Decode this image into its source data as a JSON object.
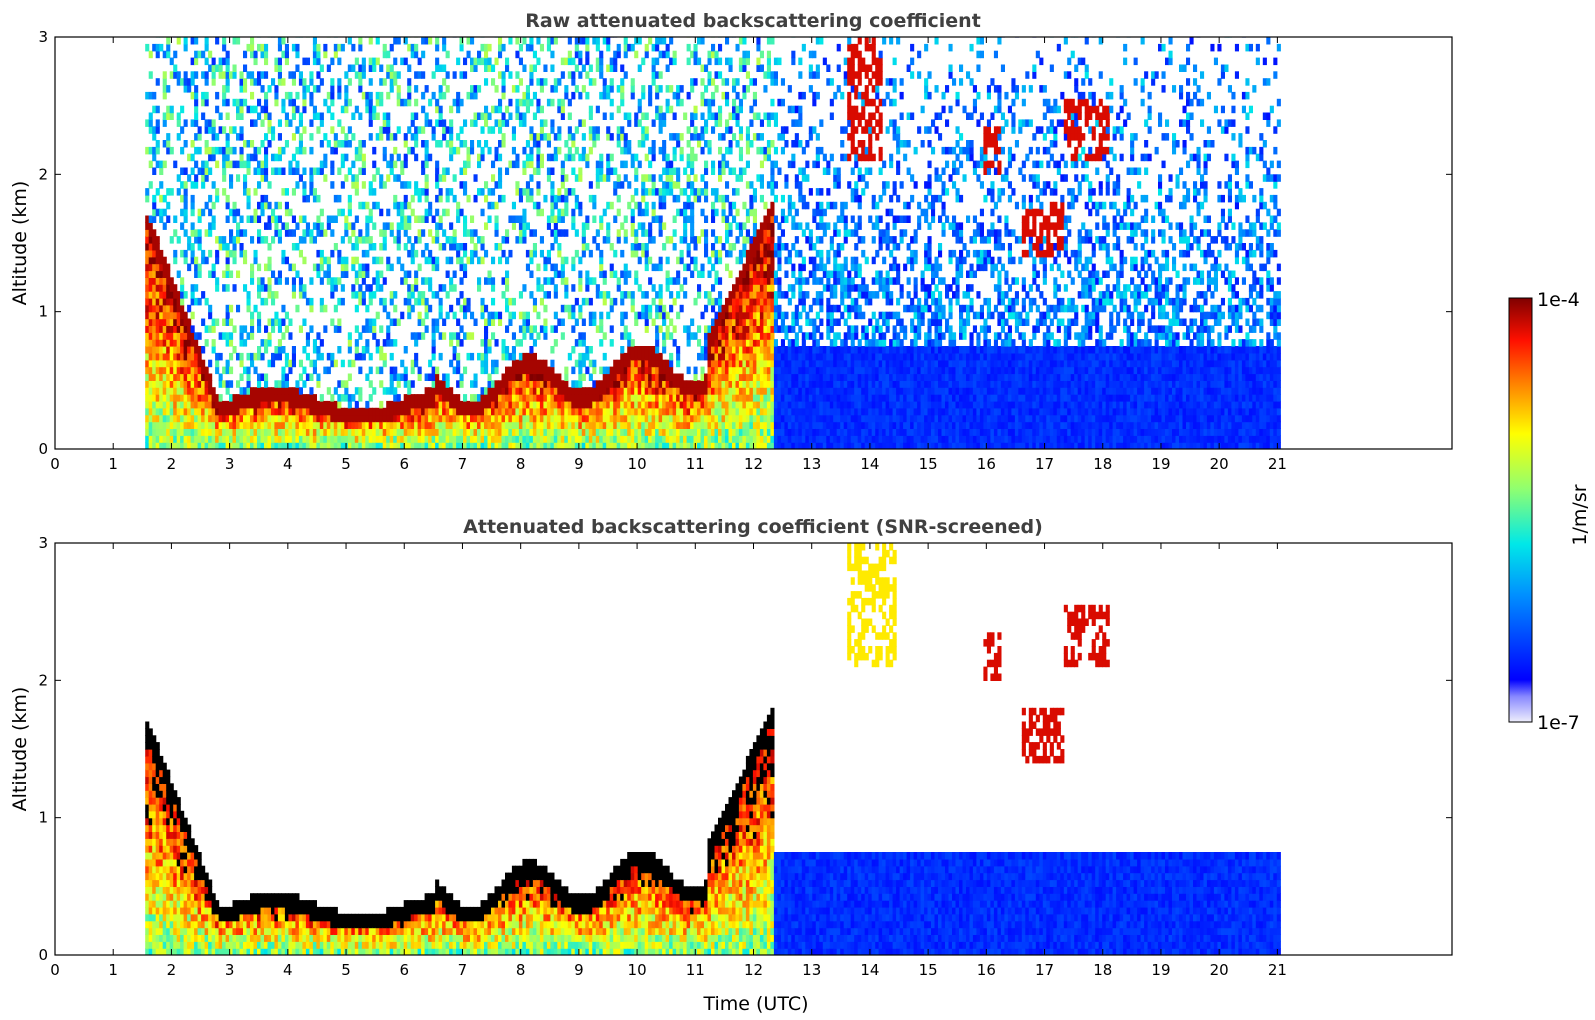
{
  "chart_data": [
    {
      "type": "heatmap",
      "title": "Raw attenuated backscattering coefficient",
      "xlabel": "",
      "ylabel": "Altitude (km)",
      "xlim": [
        0,
        24
      ],
      "ylim": [
        0,
        3
      ],
      "xticks": [
        "0",
        "1",
        "2",
        "3",
        "4",
        "5",
        "6",
        "7",
        "8",
        "9",
        "10",
        "11",
        "12",
        "13",
        "14",
        "15",
        "16",
        "17",
        "18",
        "19",
        "20",
        "21"
      ],
      "yticks": [
        "0",
        "1",
        "2",
        "3"
      ],
      "data_extent_x": [
        1.55,
        21.0
      ],
      "features": [
        {
          "name": "boundary layer",
          "x": [
            1.55,
            12.3
          ],
          "alt_km": [
            0.0,
            1.7
          ],
          "level": "high"
        },
        {
          "name": "molecular/noise background",
          "x": [
            12.6,
            21.0
          ],
          "alt_km": [
            0.0,
            0.8
          ],
          "level": "low"
        },
        {
          "name": "cloud layer",
          "x": [
            13.6,
            14.2
          ],
          "alt_km": [
            2.1,
            3.0
          ],
          "level": "high"
        },
        {
          "name": "cloud layer",
          "x": [
            15.9,
            16.2
          ],
          "alt_km": [
            2.0,
            2.3
          ],
          "level": "high"
        },
        {
          "name": "cloud layer",
          "x": [
            16.6,
            17.3
          ],
          "alt_km": [
            1.4,
            1.8
          ],
          "level": "high"
        },
        {
          "name": "cloud layer",
          "x": [
            17.3,
            18.1
          ],
          "alt_km": [
            2.1,
            2.5
          ],
          "level": "high"
        }
      ],
      "grid": false
    },
    {
      "type": "heatmap",
      "title": "Attenuated backscattering coefficient (SNR-screened)",
      "xlabel": "Time (UTC)",
      "ylabel": "Altitude (km)",
      "xlim": [
        0,
        24
      ],
      "ylim": [
        0,
        3
      ],
      "xticks": [
        "0",
        "1",
        "2",
        "3",
        "4",
        "5",
        "6",
        "7",
        "8",
        "9",
        "10",
        "11",
        "12",
        "13",
        "14",
        "15",
        "16",
        "17",
        "18",
        "19",
        "20",
        "21"
      ],
      "yticks": [
        "0",
        "1",
        "2",
        "3"
      ],
      "data_extent_x": [
        1.55,
        21.0
      ],
      "features": [
        {
          "name": "boundary layer",
          "x": [
            1.55,
            12.3
          ],
          "alt_km": [
            0.0,
            1.7
          ],
          "level": "high"
        },
        {
          "name": "molecular background",
          "x": [
            12.6,
            21.0
          ],
          "alt_km": [
            0.0,
            0.8
          ],
          "level": "low"
        },
        {
          "name": "cloud layer",
          "x": [
            13.6,
            14.4
          ],
          "alt_km": [
            2.1,
            3.0
          ],
          "level": "medium"
        },
        {
          "name": "cloud layer",
          "x": [
            15.9,
            16.2
          ],
          "alt_km": [
            2.0,
            2.3
          ],
          "level": "very high"
        },
        {
          "name": "cloud layer",
          "x": [
            16.6,
            17.3
          ],
          "alt_km": [
            1.4,
            1.8
          ],
          "level": "very high"
        },
        {
          "name": "cloud layer",
          "x": [
            17.3,
            18.1
          ],
          "alt_km": [
            2.1,
            2.5
          ],
          "level": "very high"
        }
      ],
      "grid": false
    }
  ],
  "colorbar": {
    "label": "1/m/sr",
    "max_label": "1e-4",
    "min_label": "1e-7",
    "scale": "log",
    "range": [
      1e-07,
      0.0001
    ],
    "colormap": [
      "#e8e8f8",
      "#0000ff",
      "#00a0ff",
      "#00ffff",
      "#80ff80",
      "#ffff00",
      "#ff8000",
      "#ff0000",
      "#800000"
    ]
  }
}
